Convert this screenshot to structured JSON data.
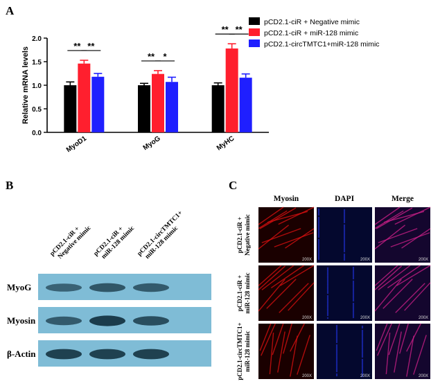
{
  "panels": {
    "a": "A",
    "b": "B",
    "c": "C"
  },
  "chart_data": {
    "type": "bar",
    "categories": [
      "MyoD1",
      "MyoG",
      "MyHC"
    ],
    "ylabel": "Relative mRNA levels",
    "ylim": [
      0.0,
      2.0
    ],
    "yticks": [
      "0.0",
      "0.5",
      "1.0",
      "1.5",
      "2.0"
    ],
    "series": [
      {
        "name": "pCD2.1-ciR + Negative mimic",
        "color": "#000000",
        "values": [
          1.0,
          1.0,
          1.0
        ],
        "errors": [
          0.07,
          0.04,
          0.05
        ]
      },
      {
        "name": "pCD2.1-ciR + miR-128 mimic",
        "color": "#ff1f2e",
        "values": [
          1.46,
          1.24,
          1.78
        ],
        "errors": [
          0.07,
          0.07,
          0.1
        ]
      },
      {
        "name": "pCD2.1-circTMTC1+miR-128 mimic",
        "color": "#1f1fff",
        "values": [
          1.18,
          1.07,
          1.16
        ],
        "errors": [
          0.07,
          0.1,
          0.08
        ]
      }
    ],
    "significance": [
      {
        "category": 0,
        "pair": [
          0,
          1
        ],
        "label": "**"
      },
      {
        "category": 0,
        "pair": [
          1,
          2
        ],
        "label": "**"
      },
      {
        "category": 1,
        "pair": [
          0,
          1
        ],
        "label": "**"
      },
      {
        "category": 1,
        "pair": [
          1,
          2
        ],
        "label": "*"
      },
      {
        "category": 2,
        "pair": [
          0,
          1
        ],
        "label": "**"
      },
      {
        "category": 2,
        "pair": [
          1,
          2
        ],
        "label": "**"
      }
    ]
  },
  "western": {
    "lanes": [
      {
        "l1": "pCD2.1-ciR +",
        "l2": "Negative mimic"
      },
      {
        "l1": "pCD2.1-ciR +",
        "l2": "miR-128 mimic"
      },
      {
        "l1": "pCD2.1-circTMTC1+",
        "l2": "miR-128 mimic"
      }
    ],
    "bands": [
      {
        "label": "MyoG",
        "intensity": [
          0.45,
          0.6,
          0.55
        ]
      },
      {
        "label": "Myosin",
        "intensity": [
          0.55,
          0.9,
          0.7
        ]
      },
      {
        "label": "β-Actin",
        "intensity": [
          0.85,
          0.85,
          0.85
        ]
      }
    ]
  },
  "microscopy": {
    "columns": [
      "Myosin",
      "DAPI",
      "Merge"
    ],
    "rows": [
      {
        "l1": "pCD2.1-ciR +",
        "l2": "Negative mimic"
      },
      {
        "l1": "pCD2.1-ciR +",
        "l2": "miR-128 mimic"
      },
      {
        "l1": "pCD2.1-circTMTC1+",
        "l2": "miR-128 mimic"
      }
    ],
    "magnification": "200X"
  }
}
